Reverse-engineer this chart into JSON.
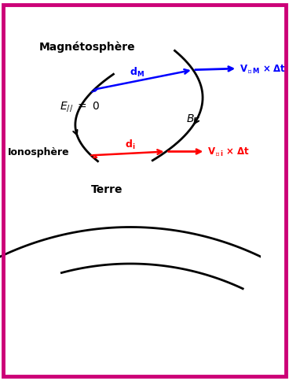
{
  "background_color": "#ffffff",
  "border_color": "#cc0077",
  "fig_width": 3.68,
  "fig_height": 4.84,
  "dpi": 100,
  "label_magnetosphere": "Magnétosphère",
  "label_ionosphere": "Ionosphère",
  "label_terre": "Terre",
  "blue_color": "#0000ff",
  "red_color": "#ff0000",
  "black_color": "#000000",
  "ionosphere_color": "#aad4f0"
}
